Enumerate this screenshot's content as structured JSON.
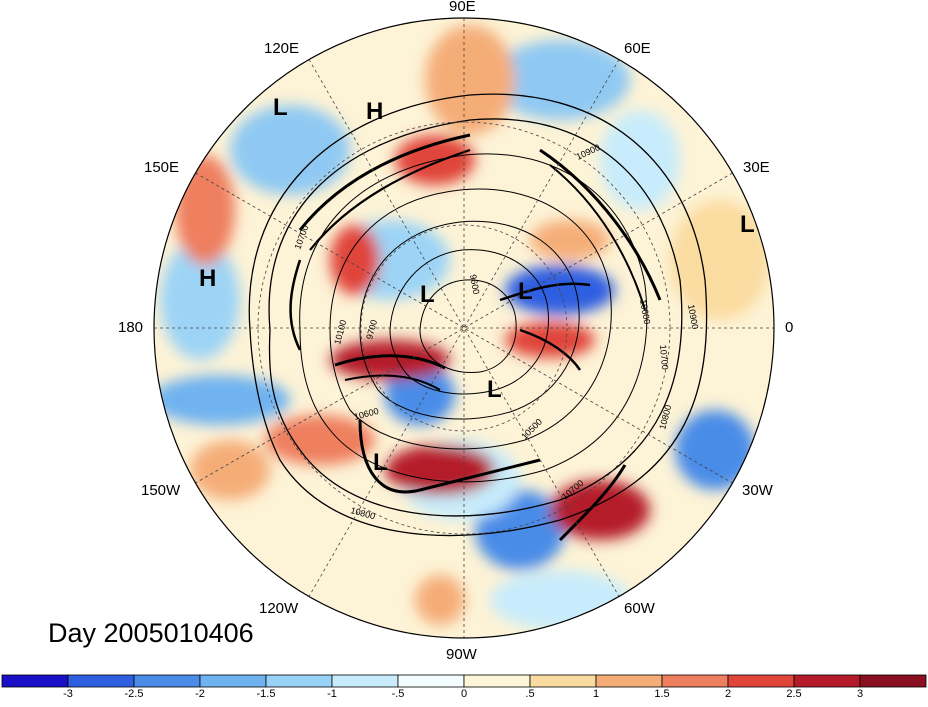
{
  "title": "Day 2005010406",
  "longitude_labels": {
    "n": "90E",
    "ne1": "60E",
    "ne2": "30E",
    "e": "0",
    "se1": "30W",
    "se2": "60W",
    "s": "90W",
    "sw1": "120W",
    "sw2": "150W",
    "w": "180",
    "nw1": "150E",
    "nw2": "120E"
  },
  "pressure_centers": [
    "L",
    "H",
    "L",
    "H",
    "L",
    "L",
    "L",
    "L"
  ],
  "contour_labels": [
    "10900",
    "10700",
    "10100",
    "9700",
    "9600",
    "10600",
    "10800",
    "10500",
    "10700",
    "10600",
    "10700",
    "10800",
    "10900"
  ],
  "colorbar": {
    "ticks": [
      "-3",
      "-2.5",
      "-2",
      "-1.5",
      "-1",
      "-.5",
      "0",
      ".5",
      "1",
      "1.5",
      "2",
      "2.5",
      "3"
    ],
    "colors": [
      "#1a10c8",
      "#2d5fe0",
      "#4a8ce8",
      "#6fb2f0",
      "#98d2f6",
      "#c8ecfb",
      "#f3fcfe",
      "#fdf6d8",
      "#fbdca0",
      "#f5ad78",
      "#ee7f5e",
      "#e0453a",
      "#b51a2a",
      "#8a0f20"
    ]
  }
}
